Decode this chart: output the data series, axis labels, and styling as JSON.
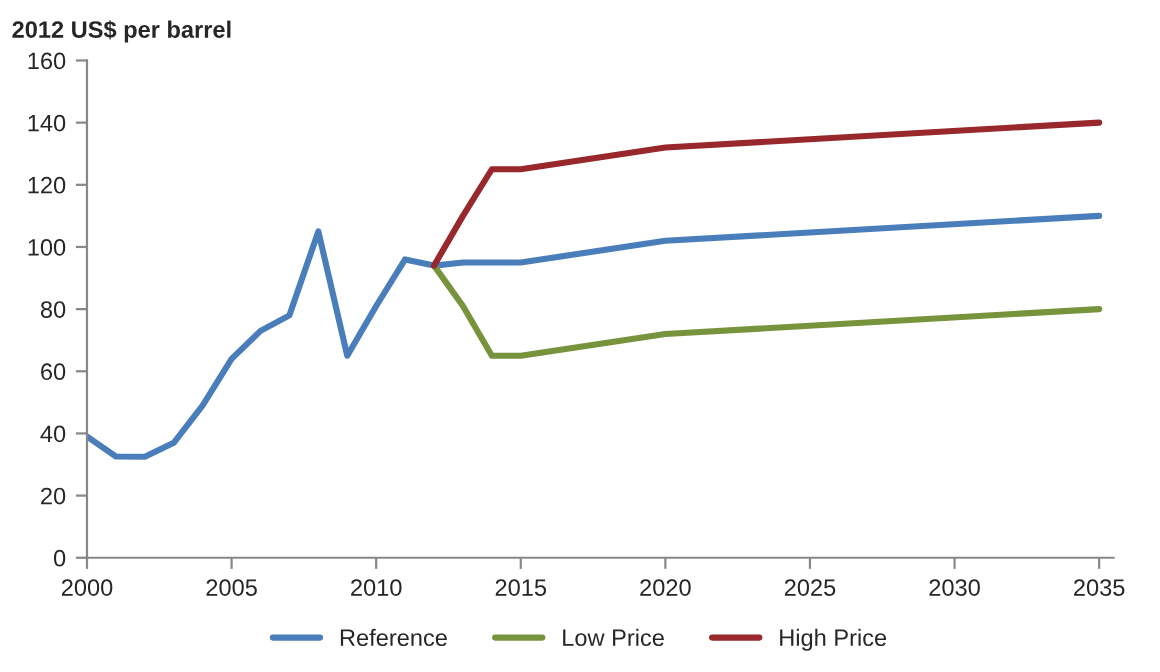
{
  "chart_data": {
    "type": "line",
    "ylabel": "2012 US$ per barrel",
    "xlim": [
      2000,
      2035.5
    ],
    "xticks": [
      2000,
      2005,
      2010,
      2015,
      2020,
      2025,
      2030,
      2035
    ],
    "ylim": [
      0,
      160
    ],
    "yticks": [
      0,
      20,
      40,
      60,
      80,
      100,
      120,
      140,
      160
    ],
    "grid": false,
    "legend": "bottom",
    "marker": "none",
    "line_style": "solid",
    "series": [
      {
        "name": "Reference",
        "color": "#4a7ebb",
        "x": [
          2000,
          2001,
          2002,
          2003,
          2004,
          2005,
          2006,
          2007,
          2008,
          2009,
          2010,
          2011,
          2012,
          2013,
          2015,
          2020,
          2035
        ],
        "values": [
          39,
          32.6,
          32.5,
          37,
          49,
          64,
          73,
          78,
          105,
          65,
          81,
          96,
          94,
          95,
          95,
          102,
          110
        ]
      },
      {
        "name": "Low Price",
        "color": "#77933c",
        "x": [
          2012,
          2013,
          2014,
          2015,
          2020,
          2035
        ],
        "values": [
          94,
          81,
          65,
          65,
          72,
          80
        ]
      },
      {
        "name": "High Price",
        "color": "#98282b",
        "x": [
          2012,
          2013,
          2014,
          2015,
          2020,
          2035
        ],
        "values": [
          94,
          110,
          125,
          125,
          132,
          140
        ]
      }
    ]
  }
}
